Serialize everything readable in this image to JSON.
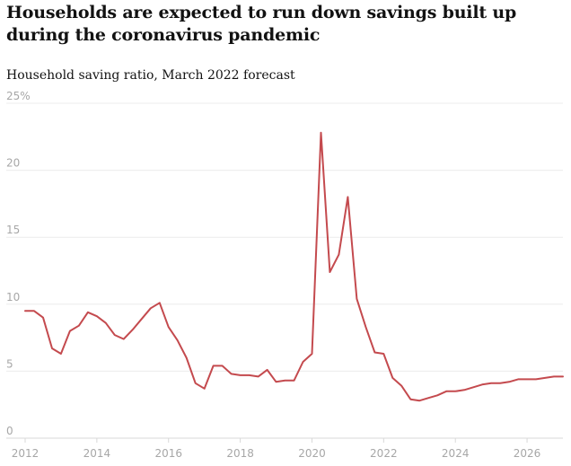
{
  "header": {
    "title": "Households are expected to run down savings built up during the coronavirus pandemic",
    "subtitle": "Household saving ratio, March 2022 forecast"
  },
  "colors": {
    "series": "#c44a4e",
    "grid": "#ececec",
    "tick_text": "#a7a7a7"
  },
  "chart_data": {
    "type": "line",
    "title": "Households are expected to run down savings built up during the coronavirus pandemic",
    "subtitle": "Household saving ratio, March 2022 forecast",
    "xlabel": "",
    "ylabel": "",
    "xlim": [
      2012,
      2027
    ],
    "ylim": [
      0,
      25
    ],
    "x_ticks": [
      2012,
      2014,
      2016,
      2018,
      2020,
      2022,
      2024,
      2026
    ],
    "y_ticks": [
      {
        "value": 0,
        "label": "0"
      },
      {
        "value": 5,
        "label": "5"
      },
      {
        "value": 10,
        "label": "10"
      },
      {
        "value": 15,
        "label": "15"
      },
      {
        "value": 20,
        "label": "20"
      },
      {
        "value": 25,
        "label": "25%"
      }
    ],
    "grid": true,
    "legend": "none",
    "series": [
      {
        "x": [
          2012.0,
          2012.25,
          2012.5,
          2012.75,
          2013.0,
          2013.25,
          2013.5,
          2013.75,
          2014.0,
          2014.25,
          2014.5,
          2014.75,
          2015.0,
          2015.25,
          2015.5,
          2015.75,
          2016.0,
          2016.25,
          2016.5,
          2016.75,
          2017.0,
          2017.25,
          2017.5,
          2017.75,
          2018.0,
          2018.25,
          2018.5,
          2018.75,
          2019.0,
          2019.25,
          2019.5,
          2019.75,
          2020.0,
          2020.25,
          2020.5,
          2020.75,
          2021.0,
          2021.25,
          2021.5,
          2021.75,
          2022.0,
          2022.25,
          2022.5,
          2022.75,
          2023.0,
          2023.25,
          2023.5,
          2023.75,
          2024.0,
          2024.25,
          2024.5,
          2024.75,
          2025.0,
          2025.25,
          2025.5,
          2025.75,
          2026.0,
          2026.25,
          2026.5,
          2026.75,
          2027.0
        ],
        "values": [
          9.5,
          9.5,
          9.0,
          6.7,
          6.3,
          8.0,
          8.4,
          9.4,
          9.1,
          8.6,
          7.7,
          7.4,
          8.1,
          8.9,
          9.7,
          10.1,
          8.3,
          7.3,
          6.0,
          4.1,
          3.7,
          5.4,
          5.4,
          4.8,
          4.7,
          4.7,
          4.6,
          5.1,
          4.2,
          4.3,
          4.3,
          5.7,
          6.3,
          22.8,
          12.4,
          13.7,
          18.0,
          10.4,
          8.3,
          6.4,
          6.3,
          4.5,
          3.9,
          2.9,
          2.8,
          3.0,
          3.2,
          3.5,
          3.5,
          3.6,
          3.8,
          4.0,
          4.1,
          4.1,
          4.2,
          4.4,
          4.4,
          4.4,
          4.5,
          4.6,
          4.6
        ]
      }
    ]
  }
}
